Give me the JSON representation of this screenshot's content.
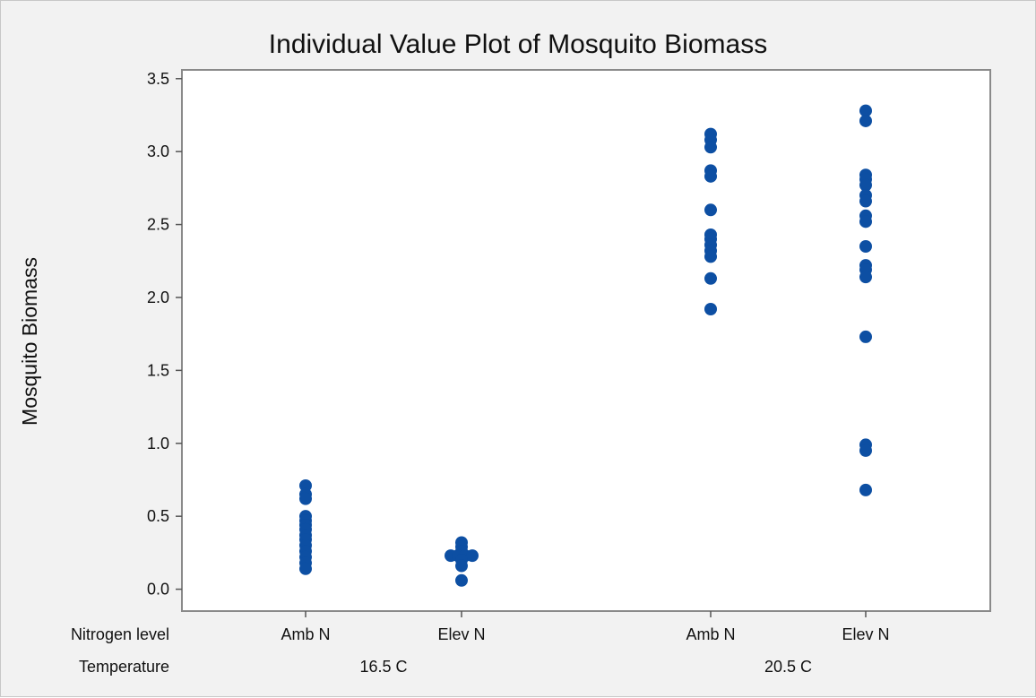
{
  "chart_data": {
    "type": "scatter",
    "title": "Individual Value Plot of Mosquito Biomass",
    "ylabel": "Mosquito Biomass",
    "ylim": [
      -0.15,
      3.56
    ],
    "yticks": [
      "0.0",
      "0.5",
      "1.0",
      "1.5",
      "2.0",
      "2.5",
      "3.0",
      "3.5"
    ],
    "ytick_values": [
      0,
      0.5,
      1.0,
      1.5,
      2.0,
      2.5,
      3.0,
      3.5
    ],
    "grid": false,
    "legend": "none",
    "marker_color": "#0d4fa3",
    "row_labels": {
      "nitrogen": "Nitrogen level",
      "temperature": "Temperature"
    },
    "temperature_groups": [
      {
        "label": "16.5 C",
        "groups": [
          0,
          1
        ]
      },
      {
        "label": "20.5 C",
        "groups": [
          2,
          3
        ]
      }
    ],
    "groups": [
      {
        "nitrogen": "Amb N",
        "temperature": "16.5 C",
        "values": [
          0.71,
          0.65,
          0.62,
          0.5,
          0.47,
          0.44,
          0.41,
          0.37,
          0.34,
          0.3,
          0.26,
          0.22,
          0.18,
          0.14
        ]
      },
      {
        "nitrogen": "Elev N",
        "temperature": "16.5 C",
        "values": [
          0.32,
          0.29,
          0.26,
          0.23,
          0.23,
          0.23,
          0.23,
          0.2,
          0.16,
          0.06
        ]
      },
      {
        "nitrogen": "Amb N",
        "temperature": "20.5 C",
        "values": [
          3.12,
          3.08,
          3.03,
          2.87,
          2.83,
          2.6,
          2.43,
          2.4,
          2.36,
          2.32,
          2.28,
          2.13,
          1.92
        ]
      },
      {
        "nitrogen": "Elev N",
        "temperature": "20.5 C",
        "values": [
          3.28,
          3.21,
          2.84,
          2.81,
          2.77,
          2.7,
          2.66,
          2.56,
          2.52,
          2.35,
          2.22,
          2.19,
          2.14,
          1.73,
          0.99,
          0.95,
          0.68
        ]
      }
    ]
  }
}
